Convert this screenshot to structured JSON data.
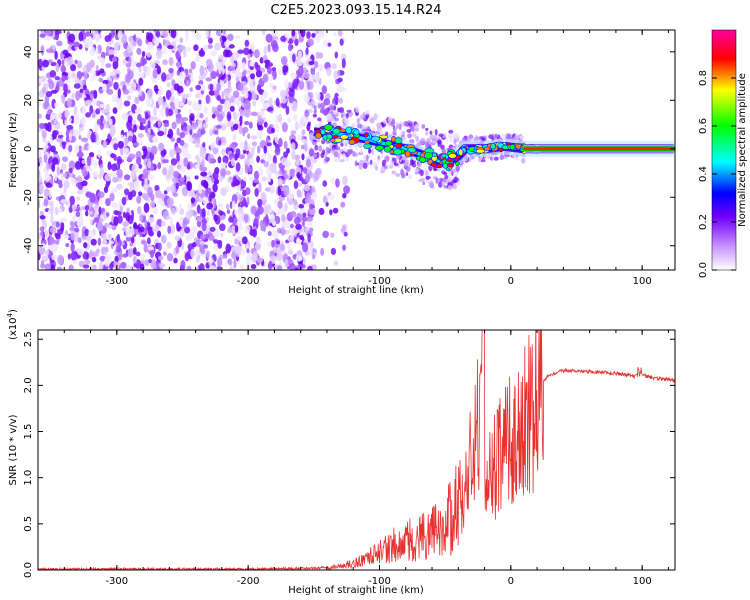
{
  "title": "C2E5.2023.093.15.14.R24",
  "chart_data": [
    {
      "type": "heatmap",
      "xlabel": "Height of straight line (km)",
      "ylabel": "Frequency (Hz)",
      "xlim": [
        -360,
        125
      ],
      "ylim": [
        -50,
        49
      ],
      "x_ticks": [
        -300,
        -200,
        -100,
        0,
        100
      ],
      "x_tick_labels": [
        "-300",
        "-200",
        "-100",
        "0",
        "100"
      ],
      "y_ticks": [
        -40,
        -20,
        0,
        20,
        40
      ],
      "y_tick_labels": [
        "-40",
        "-20",
        "0",
        "20",
        "40"
      ],
      "noise_region": {
        "x_from": -360,
        "x_to": -150,
        "freq_from": -50,
        "freq_to": 49
      },
      "signal_track": [
        {
          "x": -150,
          "freq": 7
        },
        {
          "x": -130,
          "freq": 6
        },
        {
          "x": -110,
          "freq": 4
        },
        {
          "x": -95,
          "freq": 2
        },
        {
          "x": -80,
          "freq": 0
        },
        {
          "x": -65,
          "freq": -3
        },
        {
          "x": -50,
          "freq": -6
        },
        {
          "x": -40,
          "freq": -3
        },
        {
          "x": -35,
          "freq": 0
        },
        {
          "x": -20,
          "freq": 0
        },
        {
          "x": -5,
          "freq": 1
        },
        {
          "x": 10,
          "freq": 0
        },
        {
          "x": 125,
          "freq": 0
        }
      ],
      "colorbar": {
        "label": "Normalized spectral amplitude",
        "ticks": [
          0.0,
          0.2,
          0.4,
          0.6,
          0.8
        ],
        "tick_labels": [
          "0.0",
          "0.2",
          "0.4",
          "0.6",
          "0.8"
        ],
        "range": [
          0,
          1
        ],
        "colormap": [
          "#ffffff",
          "#8000ff",
          "#0000ff",
          "#00ffff",
          "#00ff00",
          "#ffff00",
          "#ff0000",
          "#ff00ff"
        ]
      }
    },
    {
      "type": "line",
      "xlabel": "Height of straight line (km)",
      "ylabel": "SNR (10 * v/v)",
      "y_multiplier_label": "(x10",
      "y_multiplier_exp": "4",
      "y_multiplier_close": ")",
      "xlim": [
        -360,
        125
      ],
      "ylim": [
        0,
        2.6
      ],
      "x_ticks": [
        -300,
        -200,
        -100,
        0,
        100
      ],
      "x_tick_labels": [
        "-300",
        "-200",
        "-100",
        "0",
        "100"
      ],
      "y_ticks": [
        0.0,
        0.5,
        1.0,
        1.5,
        2.0,
        2.5
      ],
      "y_tick_labels": [
        "0.0",
        "0.5",
        "1.0",
        "1.5",
        "2.0",
        "2.5"
      ],
      "line_color": "#e83030",
      "series": [
        {
          "x": [
            -360,
            -300,
            -250,
            -200,
            -150,
            -130,
            -120,
            -110,
            -100,
            -90,
            -80,
            -70,
            -60,
            -50,
            -45,
            -40,
            -35,
            -30,
            -25,
            -21,
            -20,
            -15,
            -10,
            -5,
            0,
            5,
            10,
            15,
            20,
            25,
            30,
            40,
            50,
            60,
            80,
            95,
            100,
            105,
            110,
            125
          ],
          "y": [
            0.01,
            0.01,
            0.01,
            0.01,
            0.02,
            0.04,
            0.07,
            0.12,
            0.2,
            0.28,
            0.33,
            0.37,
            0.42,
            0.5,
            0.6,
            0.75,
            0.95,
            1.2,
            1.5,
            1.8,
            0.7,
            1.05,
            1.2,
            1.3,
            1.4,
            1.42,
            1.55,
            1.75,
            1.9,
            2.05,
            2.12,
            2.16,
            2.16,
            2.15,
            2.13,
            2.1,
            2.12,
            2.09,
            2.08,
            2.05
          ]
        }
      ]
    }
  ]
}
